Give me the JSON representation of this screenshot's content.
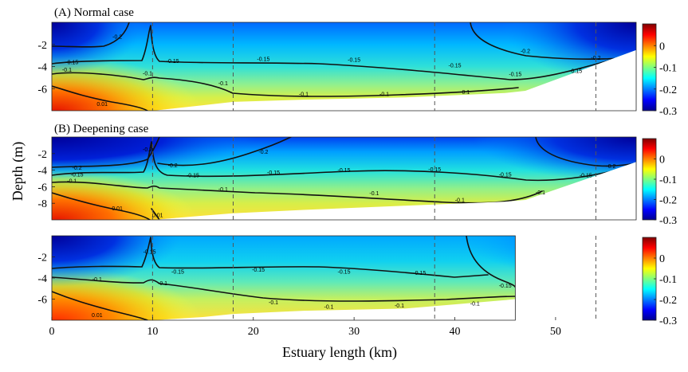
{
  "chart_data": {
    "type": "heatmap",
    "xlabel": "Estuary length (km)",
    "ylabel": "Depth (m)",
    "xlim": [
      0,
      58
    ],
    "x_ticks": [
      0,
      10,
      20,
      30,
      40,
      50
    ],
    "colorbar": {
      "range": [
        -0.3,
        0.1
      ],
      "ticks": [
        0,
        -0.1,
        -0.2,
        -0.3
      ],
      "tick_labels": [
        "0",
        "-0.1",
        "-0.2",
        "-0.3"
      ],
      "colormap": "jet"
    },
    "dashed_x_lines_km": [
      10,
      18,
      38,
      54
    ],
    "panels": [
      {
        "title": "(A) Normal case",
        "ylim": [
          -8,
          0
        ],
        "y_ticks": [
          -2,
          -4,
          -6
        ],
        "y_tick_labels": [
          "-2",
          "-4",
          "-6"
        ],
        "bottom_profile": [
          [
            0,
            -8
          ],
          [
            2,
            -8
          ],
          [
            5,
            -8
          ],
          [
            10,
            -8
          ],
          [
            15,
            -7.5
          ],
          [
            18,
            -7.2
          ],
          [
            25,
            -7.0
          ],
          [
            35,
            -6.8
          ],
          [
            45,
            -6.4
          ],
          [
            47,
            -6.2
          ],
          [
            58,
            -2.5
          ]
        ],
        "contour_labels": [
          {
            "value": "-0.2",
            "x": 6.5,
            "y": -1.3
          },
          {
            "value": "-0.2",
            "x": 47,
            "y": -2.6
          },
          {
            "value": "-0.2",
            "x": 54,
            "y": -3.2
          },
          {
            "value": "-0.15",
            "x": 2,
            "y": -3.6
          },
          {
            "value": "-0.15",
            "x": 12,
            "y": -3.5
          },
          {
            "value": "-0.15",
            "x": 21,
            "y": -3.3
          },
          {
            "value": "-0.15",
            "x": 30,
            "y": -3.4
          },
          {
            "value": "-0.15",
            "x": 40,
            "y": -3.9
          },
          {
            "value": "-0.15",
            "x": 46,
            "y": -4.7
          },
          {
            "value": "-0.15",
            "x": 52,
            "y": -4.4
          },
          {
            "value": "-0.1",
            "x": 1.5,
            "y": -4.3
          },
          {
            "value": "-0.1",
            "x": 9.5,
            "y": -4.6
          },
          {
            "value": "-0.1",
            "x": 17,
            "y": -5.5
          },
          {
            "value": "-0.1",
            "x": 25,
            "y": -6.5
          },
          {
            "value": "-0.1",
            "x": 33,
            "y": -6.5
          },
          {
            "value": "-0.1",
            "x": 41,
            "y": -6.3
          },
          {
            "value": "0.01",
            "x": 5,
            "y": -7.4
          }
        ]
      },
      {
        "title": "(B) Deepening case",
        "ylim": [
          -10,
          0
        ],
        "y_ticks": [
          -2,
          -4,
          -6,
          -8
        ],
        "y_tick_labels": [
          "-2",
          "-4",
          "-6",
          "-8"
        ],
        "bottom_profile": [
          [
            0,
            -10
          ],
          [
            5,
            -10
          ],
          [
            10,
            -10
          ],
          [
            15,
            -9.5
          ],
          [
            18,
            -9.2
          ],
          [
            25,
            -8.8
          ],
          [
            35,
            -8.3
          ],
          [
            45,
            -7.8
          ],
          [
            47,
            -7.6
          ],
          [
            58,
            -3.0
          ]
        ],
        "contour_labels": [
          {
            "value": "-0.2",
            "x": 9.5,
            "y": -1.5
          },
          {
            "value": "-0.2",
            "x": 2.5,
            "y": -3.7
          },
          {
            "value": "-0.2",
            "x": 12,
            "y": -3.4
          },
          {
            "value": "-0.2",
            "x": 21,
            "y": -1.8
          },
          {
            "value": "-0.2",
            "x": 55.5,
            "y": -3.5
          },
          {
            "value": "-0.15",
            "x": 2.5,
            "y": -4.5
          },
          {
            "value": "-0.15",
            "x": 14,
            "y": -4.6
          },
          {
            "value": "-0.15",
            "x": 22,
            "y": -4.3
          },
          {
            "value": "-0.15",
            "x": 29,
            "y": -4.0
          },
          {
            "value": "-0.15",
            "x": 38,
            "y": -3.9
          },
          {
            "value": "-0.15",
            "x": 45,
            "y": -4.5
          },
          {
            "value": "-0.15",
            "x": 53,
            "y": -4.6
          },
          {
            "value": "-0.1",
            "x": 2,
            "y": -5.3
          },
          {
            "value": "-0.1",
            "x": 17,
            "y": -6.3
          },
          {
            "value": "-0.1",
            "x": 32,
            "y": -6.8
          },
          {
            "value": "-0.1",
            "x": 40.5,
            "y": -7.6
          },
          {
            "value": "-0.1",
            "x": 48.5,
            "y": -6.7
          },
          {
            "value": "0.01",
            "x": 6.5,
            "y": -8.6
          },
          {
            "value": "0.01",
            "x": 10.5,
            "y": -9.4
          }
        ]
      },
      {
        "title": "",
        "ylim": [
          -8,
          0
        ],
        "y_ticks": [
          -2,
          -4,
          -6
        ],
        "y_tick_labels": [
          "-2",
          "-4",
          "-6"
        ],
        "bottom_profile": [
          [
            0,
            -8
          ],
          [
            5,
            -8
          ],
          [
            10,
            -8
          ],
          [
            15,
            -7.7
          ],
          [
            18,
            -7.4
          ],
          [
            25,
            -7.1
          ],
          [
            35,
            -6.9
          ],
          [
            45,
            -6.1
          ],
          [
            46,
            -6.0
          ],
          [
            46,
            0
          ]
        ],
        "contour_labels": [
          {
            "value": "-0.15",
            "x": 9.7,
            "y": -1.5
          },
          {
            "value": "-0.15",
            "x": 12.5,
            "y": -3.4
          },
          {
            "value": "-0.15",
            "x": 20.5,
            "y": -3.2
          },
          {
            "value": "-0.15",
            "x": 29,
            "y": -3.4
          },
          {
            "value": "-0.15",
            "x": 36.5,
            "y": -3.5
          },
          {
            "value": "-0.15",
            "x": 45,
            "y": -4.7
          },
          {
            "value": "-0.1",
            "x": 4.5,
            "y": -4.1
          },
          {
            "value": "-0.1",
            "x": 11,
            "y": -4.5
          },
          {
            "value": "-0.1",
            "x": 22,
            "y": -6.3
          },
          {
            "value": "-0.1",
            "x": 27.5,
            "y": -6.7
          },
          {
            "value": "-0.1",
            "x": 34.5,
            "y": -6.6
          },
          {
            "value": "-0.1",
            "x": 42,
            "y": -6.4
          },
          {
            "value": "0.01",
            "x": 4.5,
            "y": -7.5
          }
        ]
      }
    ]
  }
}
